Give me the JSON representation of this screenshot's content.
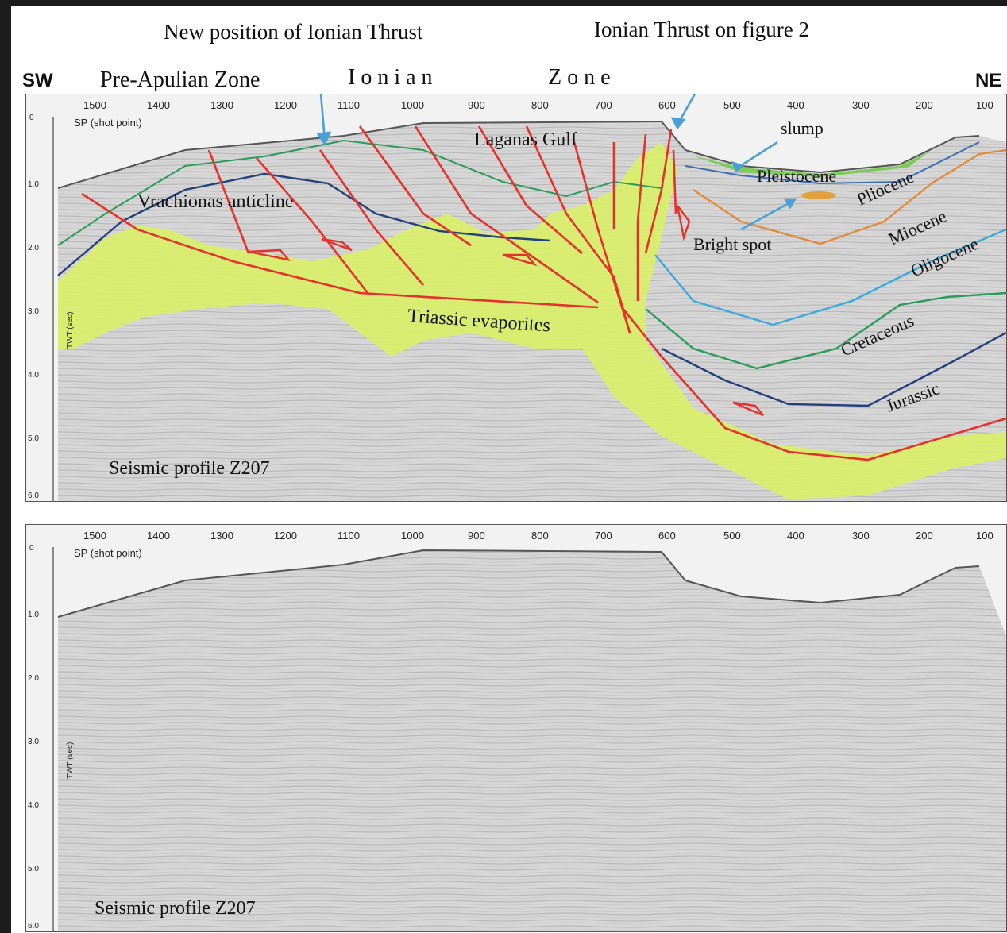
{
  "header": {
    "new_position_label": "New position of Ionian Thrust",
    "ionian_thrust_fig2_label": "Ionian Thrust on figure 2",
    "sw": "SW",
    "ne": "NE",
    "pre_apulian_zone": "Pre-Apulian Zone",
    "ionian_zone_1": "I o n i a n",
    "ionian_zone_2": "Z o n e"
  },
  "axes": {
    "shot_points": [
      "1500",
      "1400",
      "1300",
      "1200",
      "1100",
      "1000",
      "900",
      "800",
      "700",
      "600",
      "500",
      "400",
      "300",
      "200",
      "100"
    ],
    "sp_label": "SP (shot point)",
    "twt_label": "TWT (sec)",
    "twt_ticks": [
      "0",
      "1.0",
      "2.0",
      "3.0",
      "4.0",
      "5.0",
      "6.0"
    ]
  },
  "top_panel": {
    "labels": {
      "laganas_gulf": "Laganas Gulf",
      "slump": "slump",
      "pleistocene": "Pleistocene",
      "pliocene": "Pliocene",
      "miocene": "Miocene",
      "oligocene": "Oligocene",
      "cretaceous": "Cretaceous",
      "jurassic": "Jurassic",
      "bright_spot": "Bright spot",
      "vrachionas": "Vrachionas anticline",
      "triassic": "Triassic evaporites",
      "profile": "Seismic profile Z207"
    },
    "colors": {
      "evaporites": "#d9ef6a",
      "faults": "#e8302a",
      "pleistocene_base": "#3c8a3c",
      "pliocene_base": "#e08a3c",
      "oligocene_base": "#39a9db",
      "cretaceous_base": "#2a9a5a",
      "jurassic_base": "#23407a",
      "arrows": "#4a9fd6"
    }
  },
  "bottom_panel": {
    "profile": "Seismic profile Z207"
  }
}
